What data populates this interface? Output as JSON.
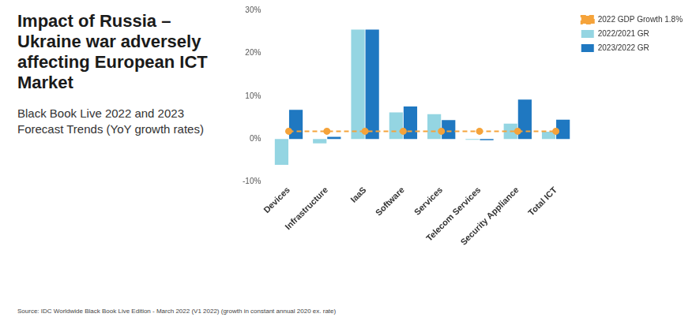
{
  "chart_data": {
    "type": "bar",
    "title": "Impact of Russia – Ukraine war adversely affecting European ICT Market",
    "subtitle": "Black Book Live 2022 and 2023 Forecast Trends (YoY growth rates)",
    "source": "Source: IDC Worldwide Black Book Live Edition - March 2022 (V1 2022) (growth in constant annual 2020 ex. rate)",
    "categories": [
      "Devices",
      "Infrastructure",
      "IaaS",
      "Software",
      "Services",
      "Telecom Services",
      "Security Appliance",
      "Total ICT"
    ],
    "series": [
      {
        "name": "2022/2021 GR",
        "type": "bar",
        "color": "#94d5e2",
        "values": [
          -6,
          -1,
          25.5,
          6.2,
          5.8,
          -0.2,
          3.6,
          1.7
        ]
      },
      {
        "name": "2023/2022 GR",
        "type": "bar",
        "color": "#1f78c1",
        "values": [
          6.8,
          0.5,
          25.5,
          7.6,
          4.4,
          -0.3,
          9.2,
          4.5
        ]
      },
      {
        "name": "2022 GDP Growth 1.8%",
        "type": "line",
        "color": "#f5a33a",
        "line_style": "dashed",
        "marker": "circle",
        "values": [
          1.8,
          1.8,
          1.8,
          1.8,
          1.8,
          1.8,
          1.8,
          1.8
        ]
      }
    ],
    "ylim": [
      -10,
      30
    ],
    "yticks": [
      {
        "value": -10,
        "label": "-10%"
      },
      {
        "value": 0,
        "label": "0%"
      },
      {
        "value": 10,
        "label": "10%"
      },
      {
        "value": 20,
        "label": "20%"
      },
      {
        "value": 30,
        "label": "30%"
      }
    ],
    "grid": false,
    "legend": "right"
  }
}
